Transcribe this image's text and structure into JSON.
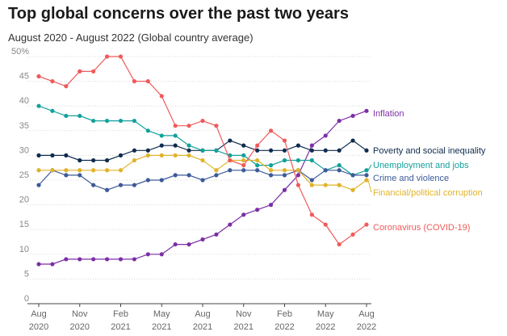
{
  "chart_data": {
    "type": "line",
    "title": "Top global concerns over the past two years",
    "subtitle": "August 2020 - August 2022 (Global country average)",
    "xlabel": "",
    "ylabel": "",
    "ylim": [
      0,
      50
    ],
    "y_ticks": [
      0,
      5,
      10,
      15,
      20,
      25,
      30,
      35,
      40,
      45,
      50
    ],
    "y_tick_labels": [
      "0",
      "5",
      "10",
      "15",
      "20",
      "25",
      "30",
      "35",
      "40",
      "45",
      "50%"
    ],
    "grid": true,
    "x_tick_labels": [
      {
        "index": 0,
        "month": "Aug",
        "year": "2020"
      },
      {
        "index": 3,
        "month": "Nov",
        "year": "2020"
      },
      {
        "index": 6,
        "month": "Feb",
        "year": "2021"
      },
      {
        "index": 9,
        "month": "May",
        "year": "2021"
      },
      {
        "index": 12,
        "month": "Aug",
        "year": "2021"
      },
      {
        "index": 15,
        "month": "Nov",
        "year": "2021"
      },
      {
        "index": 18,
        "month": "Feb",
        "year": "2022"
      },
      {
        "index": 21,
        "month": "May",
        "year": "2022"
      },
      {
        "index": 24,
        "month": "Aug",
        "year": "2022"
      }
    ],
    "x": [
      "Aug 2020",
      "Sep 2020",
      "Oct 2020",
      "Nov 2020",
      "Dec 2020",
      "Jan 2021",
      "Feb 2021",
      "Mar 2021",
      "Apr 2021",
      "May 2021",
      "Jun 2021",
      "Jul 2021",
      "Aug 2021",
      "Sep 2021",
      "Oct 2021",
      "Nov 2021",
      "Dec 2021",
      "Jan 2022",
      "Feb 2022",
      "Mar 2022",
      "Apr 2022",
      "May 2022",
      "Jun 2022",
      "Jul 2022",
      "Aug 2022"
    ],
    "series": [
      {
        "name": "Inflation",
        "color": "#7b2fa6",
        "values": [
          8,
          8,
          9,
          9,
          9,
          9,
          9,
          9,
          10,
          10,
          12,
          12,
          13,
          14,
          16,
          18,
          19,
          20,
          23,
          26,
          32,
          34,
          37,
          38,
          39
        ]
      },
      {
        "name": "Poverty and social inequality",
        "color": "#0f2b4f",
        "values": [
          30,
          30,
          30,
          29,
          29,
          29,
          30,
          31,
          31,
          32,
          32,
          31,
          31,
          31,
          33,
          32,
          31,
          31,
          31,
          32,
          31,
          31,
          31,
          33,
          31
        ]
      },
      {
        "name": "Unemployment and jobs",
        "color": "#13a19b",
        "values": [
          40,
          39,
          38,
          38,
          37,
          37,
          37,
          37,
          35,
          34,
          34,
          32,
          31,
          31,
          30,
          30,
          28,
          28,
          29,
          29,
          29,
          27,
          28,
          26,
          27
        ]
      },
      {
        "name": "Crime and violence",
        "color": "#3d5a99",
        "values": [
          24,
          27,
          26,
          26,
          24,
          23,
          24,
          24,
          25,
          25,
          26,
          26,
          25,
          26,
          27,
          27,
          27,
          26,
          26,
          27,
          25,
          27,
          27,
          26,
          26
        ]
      },
      {
        "name": "Financial/political corruption",
        "color": "#e0b32a",
        "values": [
          27,
          27,
          27,
          27,
          27,
          27,
          27,
          29,
          30,
          30,
          30,
          30,
          29,
          27,
          29,
          29,
          29,
          27,
          27,
          27,
          24,
          24,
          24,
          23,
          25
        ]
      },
      {
        "name": "Coronavirus (COVID-19)",
        "color": "#f05a5a",
        "values": [
          46,
          45,
          44,
          47,
          47,
          50,
          50,
          45,
          45,
          42,
          36,
          36,
          37,
          36,
          29,
          28,
          32,
          35,
          33,
          24,
          18,
          16,
          12,
          14,
          16
        ]
      }
    ]
  }
}
